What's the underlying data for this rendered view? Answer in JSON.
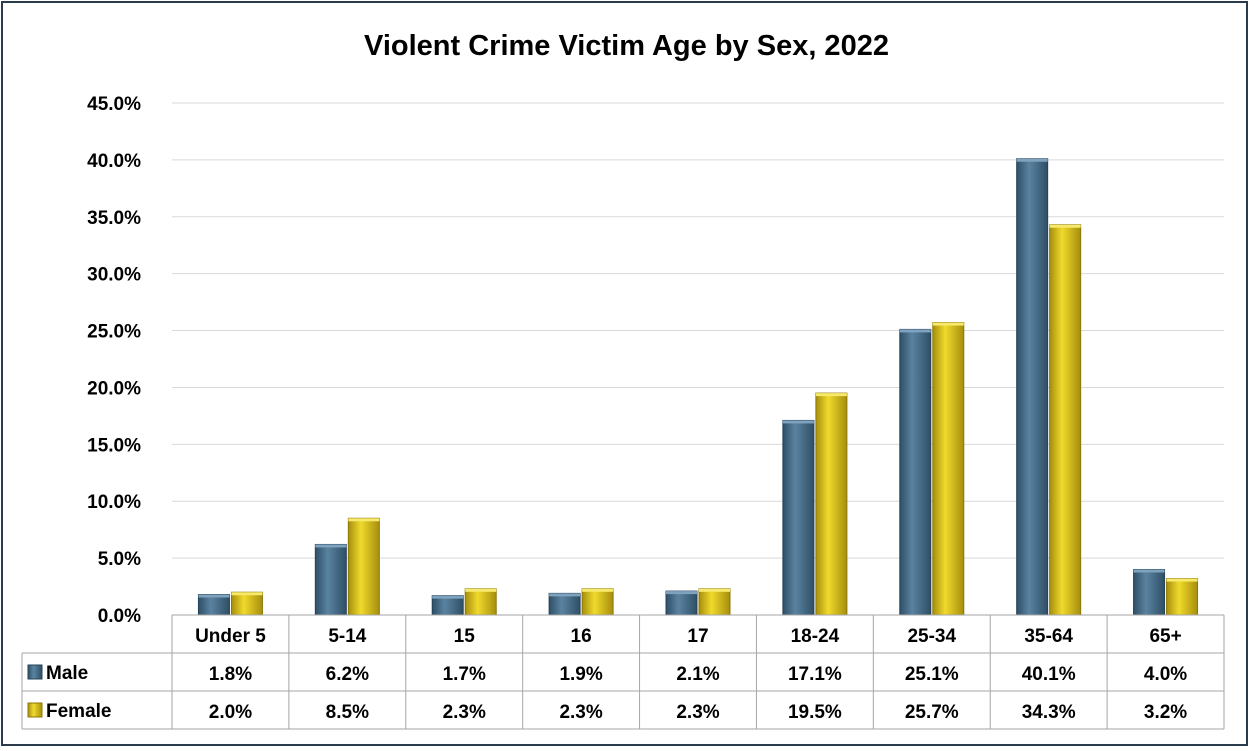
{
  "chart_data": {
    "type": "bar",
    "title": "Violent Crime Victim Age by Sex, 2022",
    "categories": [
      "Under 5",
      "5-14",
      "15",
      "16",
      "17",
      "18-24",
      "25-34",
      "35-64",
      "65+"
    ],
    "series": [
      {
        "name": "Male",
        "values": [
          1.8,
          6.2,
          1.7,
          1.9,
          2.1,
          17.1,
          25.1,
          40.1,
          4.0
        ],
        "labels": [
          "1.8%",
          "6.2%",
          "1.7%",
          "1.9%",
          "2.1%",
          "17.1%",
          "25.1%",
          "40.1%",
          "4.0%"
        ],
        "color": "#4f7592"
      },
      {
        "name": "Female",
        "values": [
          2.0,
          8.5,
          2.3,
          2.3,
          2.3,
          19.5,
          25.7,
          34.3,
          3.2
        ],
        "labels": [
          "2.0%",
          "8.5%",
          "2.3%",
          "2.3%",
          "2.3%",
          "19.5%",
          "25.7%",
          "34.3%",
          "3.2%"
        ],
        "color": "#e6cd21"
      }
    ],
    "ylim": [
      0,
      45
    ],
    "yticks": [
      "0.0%",
      "5.0%",
      "10.0%",
      "15.0%",
      "20.0%",
      "25.0%",
      "30.0%",
      "35.0%",
      "40.0%",
      "45.0%"
    ],
    "grid": true,
    "legend": "data-table"
  }
}
